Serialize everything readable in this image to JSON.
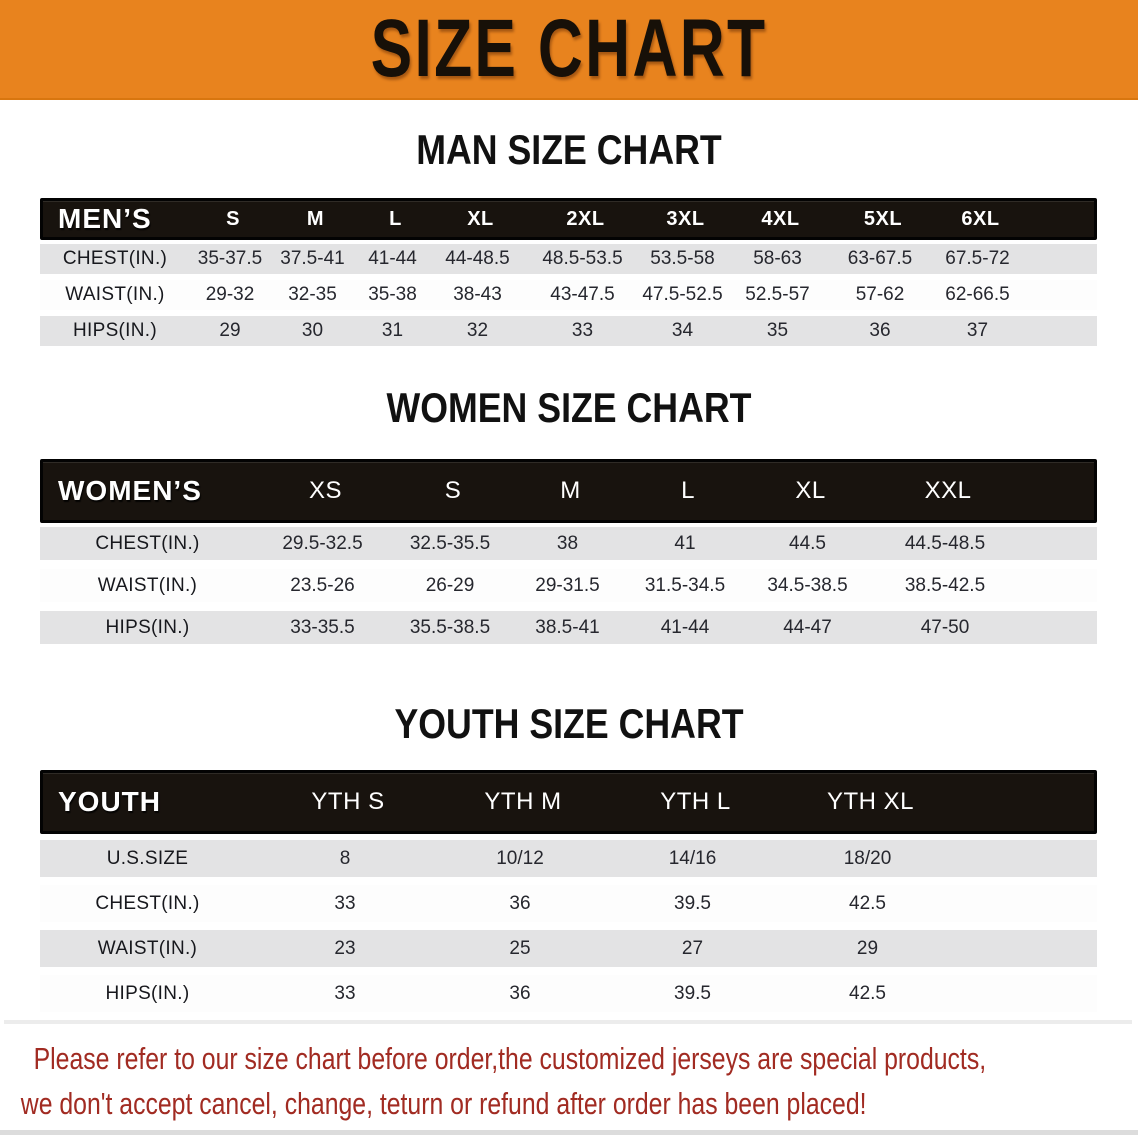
{
  "banner": {
    "title": "SIZE CHART",
    "bg_color": "#e8831e",
    "text_color": "#171008"
  },
  "sections": [
    {
      "key": "men",
      "title": "MAN SIZE CHART",
      "header_label": "MEN’S",
      "columns": [
        "S",
        "M",
        "L",
        "XL",
        "2XL",
        "3XL",
        "4XL",
        "5XL",
        "6XL"
      ],
      "rows": [
        {
          "label": "CHEST(IN.)",
          "values": [
            "35-37.5",
            "37.5-41",
            "41-44",
            "44-48.5",
            "48.5-53.5",
            "53.5-58",
            "58-63",
            "63-67.5",
            "67.5-72"
          ]
        },
        {
          "label": "WAIST(IN.)",
          "values": [
            "29-32",
            "32-35",
            "35-38",
            "38-43",
            "43-47.5",
            "47.5-52.5",
            "52.5-57",
            "57-62",
            "62-66.5"
          ]
        },
        {
          "label": "HIPS(IN.)",
          "values": [
            "29",
            "30",
            "31",
            "32",
            "33",
            "34",
            "35",
            "36",
            "37"
          ]
        }
      ]
    },
    {
      "key": "women",
      "title": "WOMEN SIZE CHART",
      "header_label": "WOMEN’S",
      "columns": [
        "XS",
        "S",
        "M",
        "L",
        "XL",
        "XXL"
      ],
      "rows": [
        {
          "label": "CHEST(IN.)",
          "values": [
            "29.5-32.5",
            "32.5-35.5",
            "38",
            "41",
            "44.5",
            "44.5-48.5"
          ]
        },
        {
          "label": "WAIST(IN.)",
          "values": [
            "23.5-26",
            "26-29",
            "29-31.5",
            "31.5-34.5",
            "34.5-38.5",
            "38.5-42.5"
          ]
        },
        {
          "label": "HIPS(IN.)",
          "values": [
            "33-35.5",
            "35.5-38.5",
            "38.5-41",
            "41-44",
            "44-47",
            "47-50"
          ]
        }
      ]
    },
    {
      "key": "youth",
      "title": "YOUTH SIZE CHART",
      "header_label": "YOUTH",
      "columns": [
        "YTH S",
        "YTH M",
        "YTH L",
        "YTH XL"
      ],
      "rows": [
        {
          "label": "U.S.SIZE",
          "values": [
            "8",
            "10/12",
            "14/16",
            "18/20"
          ]
        },
        {
          "label": "CHEST(IN.)",
          "values": [
            "33",
            "36",
            "39.5",
            "42.5"
          ]
        },
        {
          "label": "WAIST(IN.)",
          "values": [
            "23",
            "25",
            "27",
            "29"
          ]
        },
        {
          "label": "HIPS(IN.)",
          "values": [
            "33",
            "36",
            "39.5",
            "42.5"
          ]
        }
      ]
    }
  ],
  "disclaimer": {
    "line1": "Please refer to our size chart before order,the customized jerseys are special products,",
    "line2": "we don't accept cancel, change, teturn or refund after order has been placed!",
    "color": "#a12b22"
  },
  "colors": {
    "banner_orange": "#e8831e",
    "header_bar_black": "#18130e",
    "row_stripe_gray": "#e3e3e4",
    "row_stripe_white": "#fdfdfd",
    "disclaimer_red": "#a12b22",
    "table_text": "#26272e"
  }
}
